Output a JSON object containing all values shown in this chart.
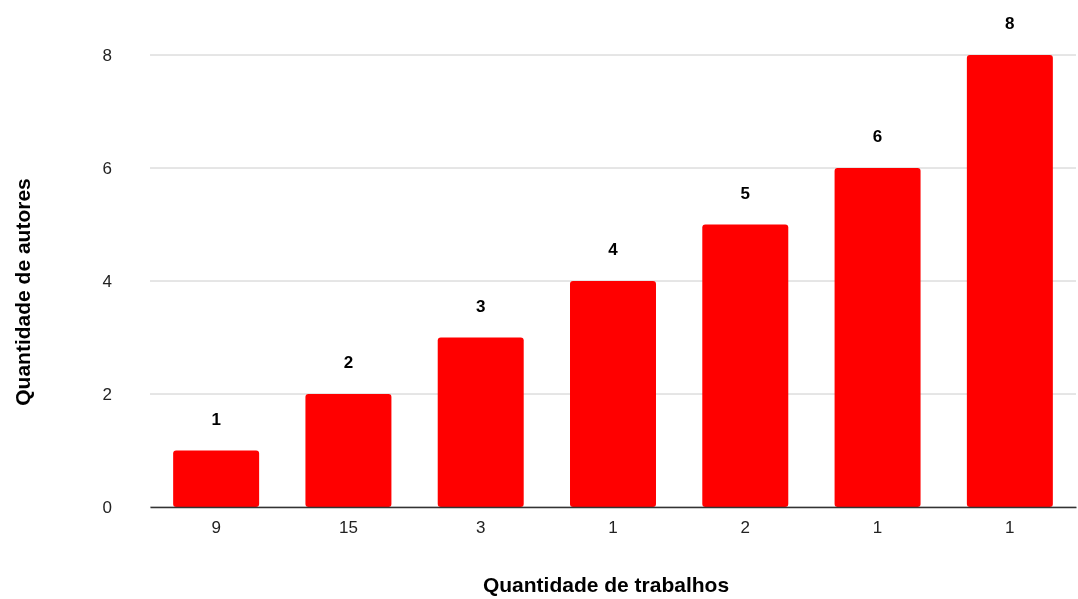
{
  "chart_data": {
    "type": "bar",
    "xlabel": "Quantidade de trabalhos",
    "ylabel": "Quantidade de autores",
    "categories": [
      "9",
      "15",
      "3",
      "1",
      "2",
      "1",
      "1"
    ],
    "values": [
      1,
      2,
      3,
      4,
      5,
      6,
      8
    ],
    "color": "#ff0000",
    "ylim": [
      0,
      8
    ],
    "yticks": [
      0,
      2,
      4,
      6,
      8
    ],
    "grid": "y",
    "data_labels": true
  }
}
